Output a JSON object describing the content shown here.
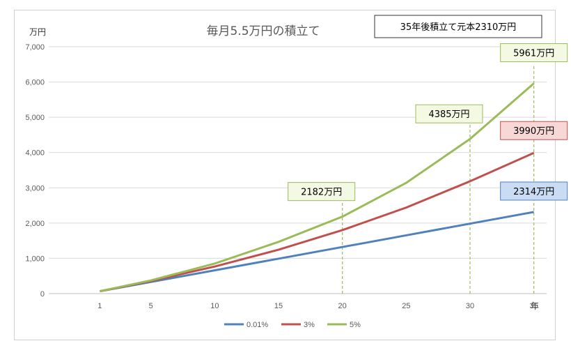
{
  "chart_data": {
    "type": "line",
    "title": "毎月5.5万円の積立て",
    "summary_box": "35年後積立て元本2310万円",
    "y_unit": "万円",
    "x_unit": "年",
    "x_ticks": [
      1,
      5,
      10,
      15,
      20,
      25,
      30,
      35
    ],
    "y_ticks": [
      "0",
      "1,000",
      "2,000",
      "3,000",
      "4,000",
      "5,000",
      "6,000",
      "7,000"
    ],
    "ylim": [
      0,
      7000
    ],
    "xlim": [
      -3,
      36
    ],
    "grid": "horizontal",
    "legend_position": "bottom",
    "x": [
      1,
      5,
      10,
      15,
      20,
      25,
      30,
      35
    ],
    "series": [
      {
        "name": "0.01%",
        "color": "#4f81bd",
        "values": [
          66,
          330,
          660,
          990,
          1321,
          1652,
          1984,
          2314
        ]
      },
      {
        "name": "3%",
        "color": "#c0504d",
        "values": [
          67,
          356,
          768,
          1245,
          1800,
          2440,
          3185,
          3990
        ]
      },
      {
        "name": "5%",
        "color": "#9bbb59",
        "values": [
          68,
          374,
          852,
          1467,
          2182,
          3140,
          4385,
          5961
        ]
      }
    ],
    "dashed_markers_x": [
      20,
      30,
      35
    ],
    "callouts": [
      {
        "text": "2182万円",
        "fill": "#f3f9e3",
        "stroke": "#9bbb59"
      },
      {
        "text": "4385万円",
        "fill": "#f3f9e3",
        "stroke": "#9bbb59"
      },
      {
        "text": "5961万円",
        "fill": "#f3f9e3",
        "stroke": "#9bbb59"
      },
      {
        "text": "3990万円",
        "fill": "#f8d7d7",
        "stroke": "#c0504d"
      },
      {
        "text": "2314万円",
        "fill": "#c9dcf3",
        "stroke": "#4f81bd"
      }
    ]
  }
}
